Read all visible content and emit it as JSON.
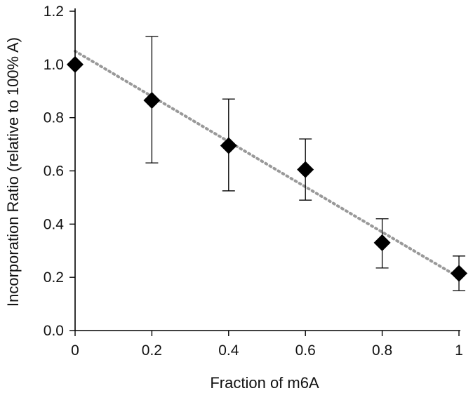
{
  "chart_data": {
    "type": "scatter",
    "title": "",
    "xlabel": "Fraction of m6A",
    "ylabel": "Incorporation Ratio (relative to 100% A)",
    "xlim": [
      0,
      1
    ],
    "ylim": [
      0,
      1.2
    ],
    "x_ticks": [
      0,
      0.2,
      0.4,
      0.6,
      0.8,
      1
    ],
    "x_tick_labels": [
      "0",
      "0.2",
      "0.4",
      "0.6",
      "0.8",
      "1"
    ],
    "y_ticks": [
      0,
      0.2,
      0.4,
      0.6,
      0.8,
      1.0,
      1.2
    ],
    "y_tick_labels": [
      "0.0",
      "0.2",
      "0.4",
      "0.6",
      "0.8",
      "1.0",
      "1.2"
    ],
    "grid": false,
    "legend": "none",
    "series": [
      {
        "marker": "diamond",
        "color": "#000000",
        "x": [
          0,
          0.2,
          0.4,
          0.6,
          0.8,
          1
        ],
        "y": [
          1.0,
          0.865,
          0.695,
          0.605,
          0.33,
          0.215
        ],
        "error_low": [
          null,
          0.63,
          0.525,
          0.49,
          0.235,
          0.15
        ],
        "error_high": [
          null,
          1.105,
          0.87,
          0.72,
          0.42,
          0.28
        ]
      }
    ],
    "trendline": {
      "style": "dotted",
      "color": "#999999",
      "x": [
        0,
        1
      ],
      "y": [
        1.05,
        0.2
      ]
    }
  }
}
